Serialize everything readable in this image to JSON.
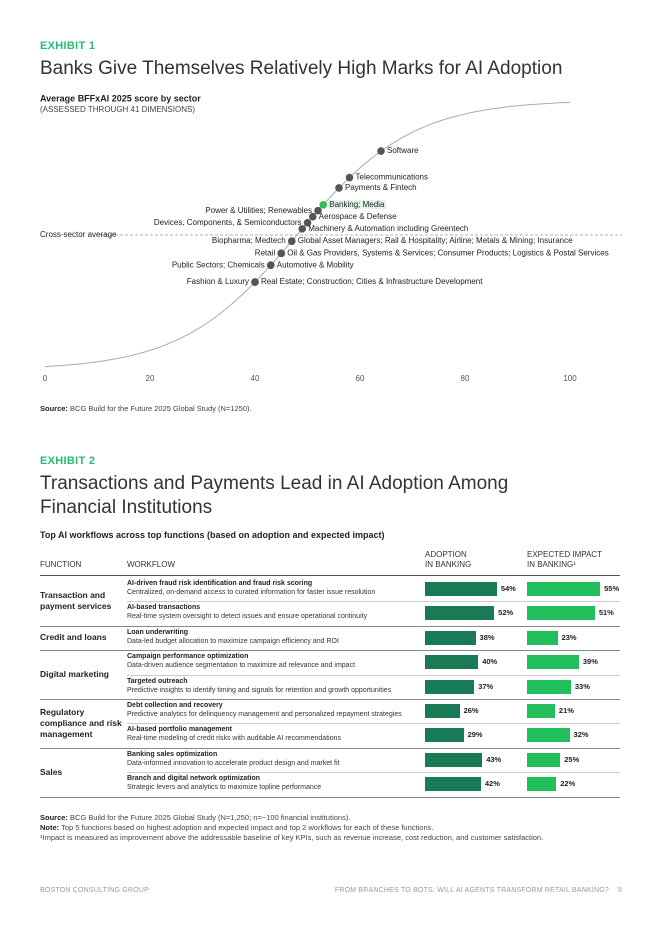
{
  "exhibit1": {
    "label": "EXHIBIT 1",
    "title": "Banks Give Themselves Relatively High Marks for AI Adoption",
    "chart_data": {
      "type": "scatter",
      "title": "Average BFFxAI 2025 score by sector",
      "subtitle": "(ASSESSED THROUGH 41 DIMENSIONS)",
      "xlim": [
        0,
        100
      ],
      "xticks": [
        0,
        20,
        40,
        60,
        80,
        100
      ],
      "average": 48,
      "average_label": "Cross-sector average",
      "color": "#555555",
      "highlight_color": "#2fbe4f",
      "points": [
        {
          "label": "Software",
          "value": 64,
          "side": "right"
        },
        {
          "label": "Telecommunications",
          "value": 58,
          "side": "right"
        },
        {
          "label": "Payments & Fintech",
          "value": 56,
          "side": "right"
        },
        {
          "label": "Banking; Media",
          "value": 53,
          "side": "right",
          "highlight": true
        },
        {
          "label": "Power & Utilities; Renewables",
          "value": 52,
          "side": "left"
        },
        {
          "label": "Aerospace & Defense",
          "value": 51,
          "side": "right"
        },
        {
          "label": "Devices, Components, & Semiconductors",
          "value": 50,
          "side": "left"
        },
        {
          "label": "Machinery & Automation including Greentech",
          "value": 49,
          "side": "right"
        },
        {
          "label": "Biopharma; Medtech",
          "value": 47,
          "side": "left"
        },
        {
          "label": "Global Asset Managers; Rail & Hospitality; Airline; Metals & Mining; Insurance",
          "value": 47,
          "side": "right"
        },
        {
          "label": "Retail",
          "value": 45,
          "side": "left"
        },
        {
          "label": "Oil & Gas Providers, Systems & Services; Consumer Products; Logistics & Postal Services",
          "value": 45,
          "side": "right"
        },
        {
          "label": "Public Sectors; Chemicals",
          "value": 43,
          "side": "left"
        },
        {
          "label": "Automotive & Mobility",
          "value": 43,
          "side": "right"
        },
        {
          "label": "Fashion & Luxury",
          "value": 40,
          "side": "left"
        },
        {
          "label": "Real Estate; Construction; Cities & Infrastructure Development",
          "value": 40,
          "side": "right"
        }
      ]
    },
    "source": {
      "label": "Source:",
      "text": "BCG Build for the Future 2025 Global Study (N=1250)."
    }
  },
  "exhibit2": {
    "label": "EXHIBIT 2",
    "title": "Transactions and Payments Lead in AI Adoption Among Financial Institutions",
    "table": {
      "title": "Top AI workflows across top functions (based on adoption and expected impact)",
      "headers": [
        "FUNCTION",
        "WORKFLOW",
        "ADOPTION\nIN BANKING",
        "EXPECTED IMPACT\nIN BANKING¹"
      ],
      "adoption_color": "#197a56",
      "impact_color": "#21bf5b",
      "groups": [
        {
          "function": "Transaction and payment services",
          "workflows": [
            {
              "name": "AI-driven fraud risk identification and fraud risk scoring",
              "description": "Centralized, on-demand access to curated information for faster issue resolution",
              "adoption": 54,
              "adoption_label": "54%",
              "impact": 55,
              "impact_label": "55%"
            },
            {
              "name": "AI-based transactions",
              "description": "Real-time system oversight to detect issues and ensure operational continuity",
              "adoption": 52,
              "adoption_label": "52%",
              "impact": 51,
              "impact_label": "51%"
            }
          ]
        },
        {
          "function": "Credit and loans",
          "workflows": [
            {
              "name": "Loan underwriting",
              "description": "Data-led budget allocation to maximize campaign efficiency and ROI",
              "adoption": 38,
              "adoption_label": "38%",
              "impact": 23,
              "impact_label": "23%"
            }
          ]
        },
        {
          "function": "Digital marketing",
          "workflows": [
            {
              "name": "Campaign performance optimization",
              "description": "Data-driven audience segmentation to maximize ad relevance and impact",
              "adoption": 40,
              "adoption_label": "40%",
              "impact": 39,
              "impact_label": "39%"
            },
            {
              "name": "Targeted outreach",
              "description": "Predictive insights to identify timing and signals for retention and growth opportunities",
              "adoption": 37,
              "adoption_label": "37%",
              "impact": 33,
              "impact_label": "33%"
            }
          ]
        },
        {
          "function": "Regulatory compliance and risk management",
          "workflows": [
            {
              "name": "Debt collection and recovery",
              "description": "Predictive analytics for delinquency management and personalized repayment strategies",
              "adoption": 26,
              "adoption_label": "26%",
              "impact": 21,
              "impact_label": "21%"
            },
            {
              "name": "AI-based portfolio management",
              "description": "Real-time modeling of credit risks with auditable AI recommendations",
              "adoption": 29,
              "adoption_label": "29%",
              "impact": 32,
              "impact_label": "32%"
            }
          ]
        },
        {
          "function": "Sales",
          "workflows": [
            {
              "name": "Banking sales optimization",
              "description": "Data-informed innovation to accelerate product design and market fit",
              "adoption": 43,
              "adoption_label": "43%",
              "impact": 25,
              "impact_label": "25%"
            },
            {
              "name": "Branch and digital network optimization",
              "description": "Strategic levers and analytics to maximize topline performance",
              "adoption": 42,
              "adoption_label": "42%",
              "impact": 22,
              "impact_label": "22%"
            }
          ]
        }
      ]
    },
    "notes": [
      {
        "label": "Source:",
        "text": "BCG Build for the Future 2025 Global Study (N=1,250; n=~100 financial institutions)."
      },
      {
        "label": "Note:",
        "text": "Top 5 functions based on highest adoption and expected impact and top 2 workflows for each of these functions."
      },
      {
        "label": "",
        "text": "¹Impact is measured as improvement above the addressable baseline of key KPIs, such as revenue increase, cost reduction, and customer satisfaction."
      }
    ]
  },
  "footer": {
    "left": "BOSTON CONSULTING GROUP",
    "right": "FROM BRANCHES TO BOTS: WILL AI AGENTS TRANSFORM RETAIL BANKING?",
    "page": "5"
  }
}
